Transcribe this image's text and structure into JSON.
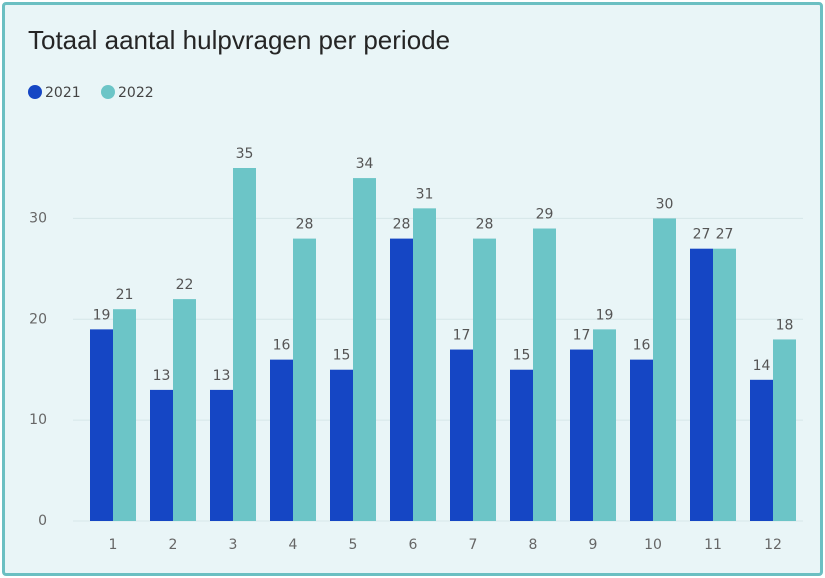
{
  "chart_data": {
    "type": "bar",
    "title": "Totaal aantal hulpvragen per periode",
    "categories": [
      "1",
      "2",
      "3",
      "4",
      "5",
      "6",
      "7",
      "8",
      "9",
      "10",
      "11",
      "12"
    ],
    "series": [
      {
        "name": "2021",
        "color": "#1546c4",
        "values": [
          19,
          13,
          13,
          16,
          15,
          28,
          17,
          15,
          17,
          16,
          27,
          14
        ]
      },
      {
        "name": "2022",
        "color": "#6cc5c7",
        "values": [
          21,
          22,
          35,
          28,
          34,
          31,
          28,
          29,
          19,
          30,
          27,
          18
        ]
      }
    ],
    "ylim": [
      0,
      35
    ],
    "yticks": [
      0,
      10,
      20,
      30
    ],
    "grid": true,
    "legend": "top-left"
  }
}
